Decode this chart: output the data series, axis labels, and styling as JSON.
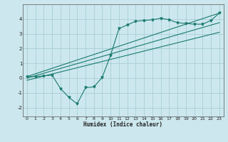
{
  "xlabel": "Humidex (Indice chaleur)",
  "bg_color": "#cce8ee",
  "grid_color": "#aacdd6",
  "line_color": "#1a7a6e",
  "xlim": [
    -0.5,
    23.5
  ],
  "ylim": [
    -2.6,
    5.0
  ],
  "yticks": [
    -2,
    -1,
    0,
    1,
    2,
    3,
    4
  ],
  "xticks": [
    0,
    1,
    2,
    3,
    4,
    5,
    6,
    7,
    8,
    9,
    10,
    11,
    12,
    13,
    14,
    15,
    16,
    17,
    18,
    19,
    20,
    21,
    22,
    23
  ],
  "line1_x": [
    0,
    1,
    2,
    3,
    4,
    5,
    6,
    7,
    8,
    9,
    10,
    11,
    12,
    13,
    14,
    15,
    16,
    17,
    18,
    19,
    20,
    21,
    22,
    23
  ],
  "line1_y": [
    0.1,
    0.1,
    0.15,
    0.2,
    -0.7,
    -1.3,
    -1.75,
    -0.65,
    -0.6,
    0.05,
    1.55,
    3.35,
    3.6,
    3.85,
    3.9,
    3.95,
    4.05,
    3.95,
    3.75,
    3.7,
    3.65,
    3.65,
    3.9,
    4.4
  ],
  "line2_x": [
    0,
    23
  ],
  "line2_y": [
    0.1,
    4.4
  ],
  "line3_x": [
    0,
    23
  ],
  "line3_y": [
    0.0,
    3.75
  ],
  "line4_x": [
    0,
    23
  ],
  "line4_y": [
    -0.15,
    3.1
  ]
}
